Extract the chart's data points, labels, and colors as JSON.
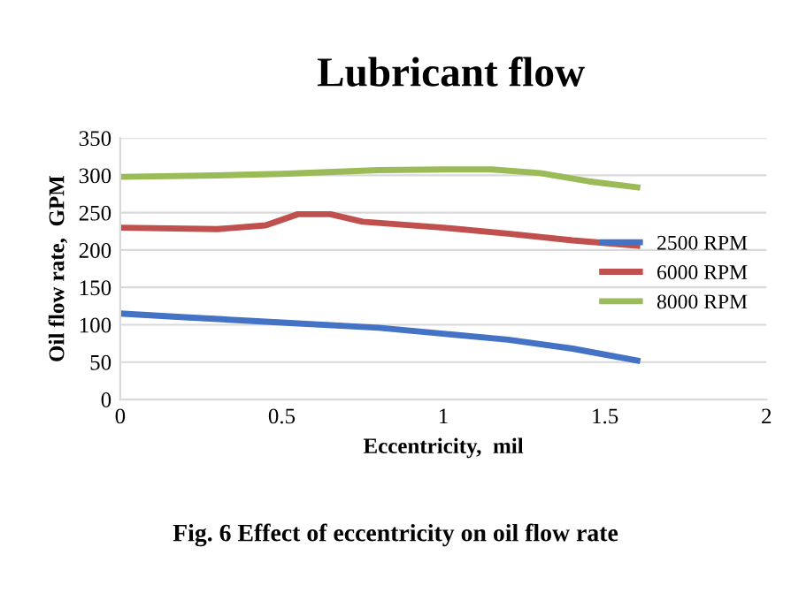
{
  "chart_data": {
    "type": "line",
    "title": "Lubricant flow",
    "xlabel": "Eccentricity,  mil",
    "ylabel": "Oil flow rate,  GPM",
    "annotations": [
      "Fig. 6 Effect of eccentricity on oil flow rate"
    ],
    "xlim": [
      0,
      2
    ],
    "xticks": [
      0,
      0.5,
      1,
      1.5,
      2
    ],
    "ylim": [
      0,
      350
    ],
    "yticks": [
      0,
      50,
      100,
      150,
      200,
      250,
      300,
      350
    ],
    "grid": "y",
    "legend": "right",
    "marker": "none",
    "line_style": "solid",
    "series": [
      {
        "name": "2500 RPM",
        "color": "#4472c4",
        "x": [
          0,
          0.2,
          0.5,
          0.8,
          1.0,
          1.2,
          1.4,
          1.6
        ],
        "values": [
          115,
          110,
          103,
          96,
          88,
          80,
          68,
          52
        ]
      },
      {
        "name": "6000 RPM",
        "color": "#c0504d",
        "x": [
          0,
          0.3,
          0.45,
          0.55,
          0.65,
          0.75,
          1.0,
          1.2,
          1.4,
          1.6
        ],
        "values": [
          230,
          228,
          233,
          248,
          248,
          238,
          230,
          222,
          213,
          206
        ]
      },
      {
        "name": "8000 RPM",
        "color": "#9bbb59",
        "x": [
          0,
          0.3,
          0.5,
          0.8,
          1.0,
          1.15,
          1.3,
          1.45,
          1.6
        ],
        "values": [
          298,
          300,
          302,
          307,
          308,
          308,
          303,
          292,
          284
        ]
      }
    ]
  }
}
